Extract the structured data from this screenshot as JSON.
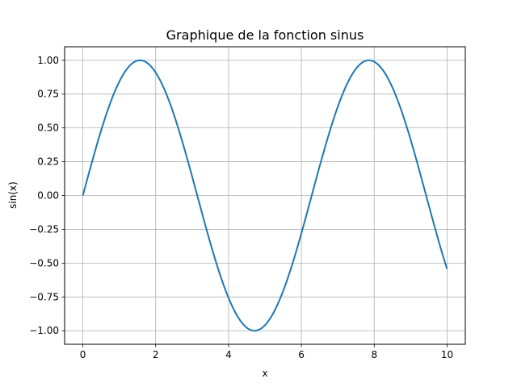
{
  "chart_data": {
    "type": "line",
    "title": "Graphique de la fonction sinus",
    "xlabel": "x",
    "ylabel": "sin(x)",
    "xlim": [
      -0.5,
      10.5
    ],
    "ylim": [
      -1.1,
      1.1
    ],
    "grid": true,
    "x_ticks": [
      0,
      2,
      4,
      6,
      8,
      10
    ],
    "x_tick_labels": [
      "0",
      "2",
      "4",
      "6",
      "8",
      "10"
    ],
    "y_ticks": [
      -1.0,
      -0.75,
      -0.5,
      -0.25,
      0.0,
      0.25,
      0.5,
      0.75,
      1.0
    ],
    "y_tick_labels": [
      "−1.00",
      "−0.75",
      "−0.50",
      "−0.25",
      "0.00",
      "0.25",
      "0.50",
      "0.75",
      "1.00"
    ],
    "series": [
      {
        "function": "sin",
        "color": "#1f77b4",
        "x_range": [
          0,
          10
        ],
        "x": [
          0,
          0.5,
          1,
          1.5,
          2,
          2.5,
          3,
          3.5,
          4,
          4.5,
          5,
          5.5,
          6,
          6.5,
          7,
          7.5,
          8,
          8.5,
          9,
          9.5,
          10
        ],
        "y": [
          0,
          0.479,
          0.841,
          0.997,
          0.909,
          0.598,
          0.141,
          -0.351,
          -0.757,
          -0.978,
          -0.959,
          -0.706,
          -0.279,
          0.215,
          0.657,
          0.938,
          0.989,
          0.798,
          0.412,
          -0.075,
          -0.544
        ]
      }
    ]
  }
}
